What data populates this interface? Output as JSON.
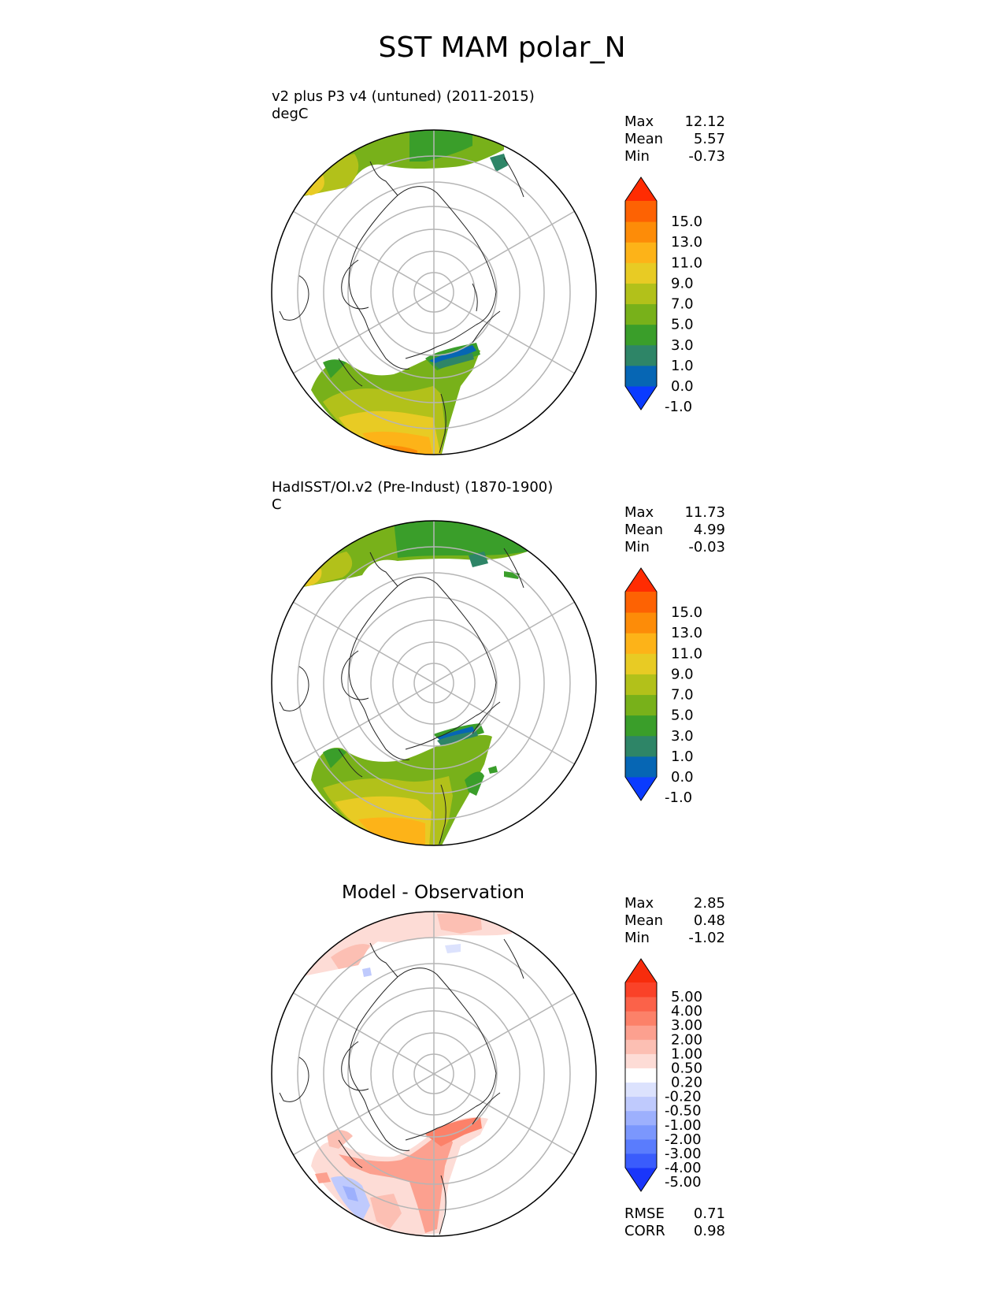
{
  "title": "SST MAM polar_N",
  "panels": [
    {
      "title_line1": "v2 plus P3 v4 (untuned) (2011-2015)",
      "title_line2": "degC",
      "stats": [
        {
          "label": "Max",
          "value": "12.12"
        },
        {
          "label": "Mean",
          "value": "5.57"
        },
        {
          "label": "Min",
          "value": "-0.73"
        }
      ],
      "colorbar": {
        "colors": [
          "#0a3bff",
          "#0666b4",
          "#2e8567",
          "#3a9e2a",
          "#78b11a",
          "#b2c11a",
          "#e8cb24",
          "#fdb318",
          "#fd8c08",
          "#fd6203",
          "#ff2c02"
        ],
        "labels": [
          "15.0",
          "13.0",
          "11.0",
          "9.0",
          "7.0",
          "5.0",
          "3.0",
          "1.0",
          "0.0",
          "-1.0"
        ]
      }
    },
    {
      "title_line1": "HadISST/OI.v2 (Pre-Indust) (1870-1900)",
      "title_line2": "C",
      "stats": [
        {
          "label": "Max",
          "value": "11.73"
        },
        {
          "label": "Mean",
          "value": "4.99"
        },
        {
          "label": "Min",
          "value": "-0.03"
        }
      ],
      "colorbar": {
        "colors": [
          "#0a3bff",
          "#0666b4",
          "#2e8567",
          "#3a9e2a",
          "#78b11a",
          "#b2c11a",
          "#e8cb24",
          "#fdb318",
          "#fd8c08",
          "#fd6203",
          "#ff2c02"
        ],
        "labels": [
          "15.0",
          "13.0",
          "11.0",
          "9.0",
          "7.0",
          "5.0",
          "3.0",
          "1.0",
          "0.0",
          "-1.0"
        ]
      }
    },
    {
      "title_center": "Model - Observation",
      "stats": [
        {
          "label": "Max",
          "value": "2.85"
        },
        {
          "label": "Mean",
          "value": "0.48"
        },
        {
          "label": "Min",
          "value": "-1.02"
        }
      ],
      "colorbar": {
        "colors": [
          "#1a36fa",
          "#3a5cfc",
          "#5a7cfd",
          "#7b97fd",
          "#9db0fd",
          "#bfcafd",
          "#dce2fd",
          "#ffffff",
          "#fddcd6",
          "#fcbfb3",
          "#fca08f",
          "#fc8169",
          "#fb6249",
          "#fa4228",
          "#f72c0c"
        ],
        "labels": [
          "5.00",
          "4.00",
          "3.00",
          "2.00",
          "1.00",
          "0.50",
          "0.20",
          "-0.20",
          "-0.50",
          "-1.00",
          "-2.00",
          "-3.00",
          "-4.00",
          "-5.00"
        ]
      },
      "metrics": [
        {
          "label": "RMSE",
          "value": "0.71"
        },
        {
          "label": "CORR",
          "value": "0.98"
        }
      ]
    }
  ]
}
